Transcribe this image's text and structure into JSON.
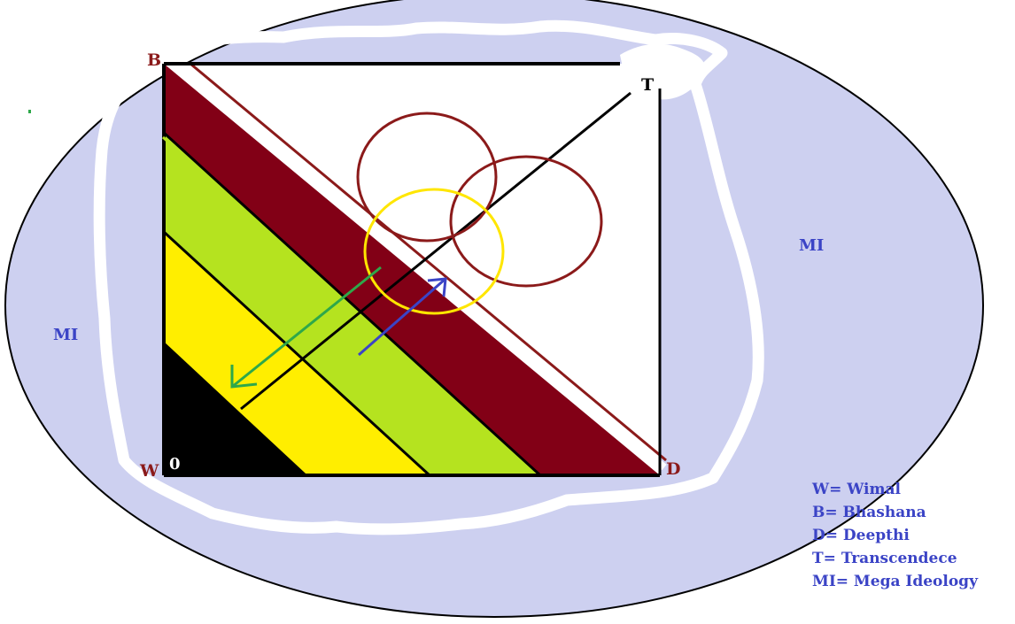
{
  "labels": {
    "b": "B",
    "t": "T",
    "w": "W",
    "d": "D",
    "zero": "0",
    "mi_left": "MI",
    "mi_right": "MI"
  },
  "legend": [
    "W= Wimal",
    "B= Bhashana",
    "D= Deepthi",
    "T= Transcendece",
    "MI= Mega Ideology"
  ],
  "colors": {
    "oval": "#cdd0f0",
    "blob": "#ffffff",
    "maroon": "#820016",
    "green": "#b5e31f",
    "yellow": "#ffee00",
    "black": "#000000",
    "label_dark_red": "#8b1a1a",
    "label_blue": "#3b44c6",
    "arrow_green": "#2ea84a",
    "arrow_blue": "#3b44c6",
    "circle_maroon": "#8b1a1a",
    "circle_yellow": "#ffe600"
  }
}
